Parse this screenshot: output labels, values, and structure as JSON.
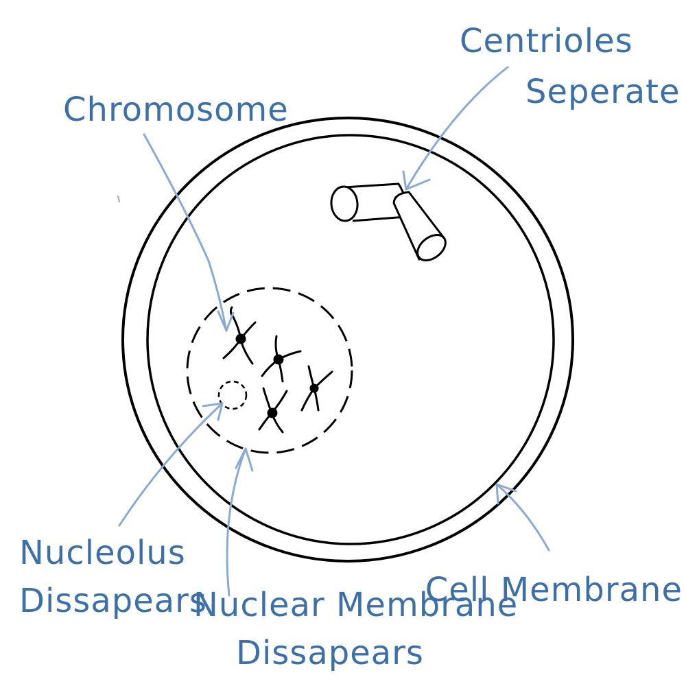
{
  "labels": {
    "centrioles_line1": "Centrioles",
    "centrioles_line2": "Seperate",
    "chromosome": "Chromosome",
    "nucleolus_line1": "Nucleolus",
    "nucleolus_line2": "Dissapears",
    "nuclear_membrane_line1": "Nuclear Membrane",
    "nuclear_membrane_line2": "Dissapears",
    "cell_membrane": "Cell Membrane"
  },
  "colors": {
    "label": "#3d6fa8",
    "arrow": "#8aaad4",
    "outline": "#000000"
  }
}
